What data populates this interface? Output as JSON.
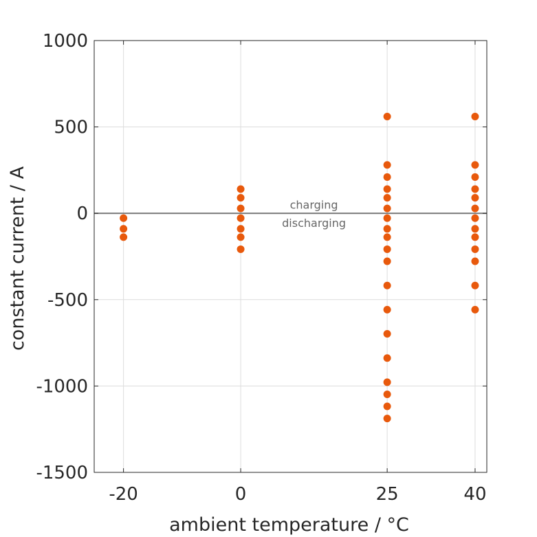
{
  "chart_data": {
    "type": "scatter",
    "xlabel": "ambient temperature / °C",
    "ylabel": "constant current / A",
    "xlim": [
      -25,
      42
    ],
    "ylim": [
      -1500,
      1000
    ],
    "xticks": [
      -20,
      0,
      25,
      40
    ],
    "xtick_labels": [
      "-20",
      "0",
      "25",
      "40"
    ],
    "yticks": [
      -1500,
      -1000,
      -500,
      0,
      500,
      1000
    ],
    "ytick_labels": [
      "-1500",
      "-1000",
      "-500",
      "0",
      "500",
      "1000"
    ],
    "grid": true,
    "reference_line": 0,
    "annotations": [
      {
        "text": "charging",
        "x": 12.5,
        "y": 50
      },
      {
        "text": "discharging",
        "x": 12.5,
        "y": -55
      }
    ],
    "series": [
      {
        "color": "#e8590c",
        "points": [
          {
            "x": -20,
            "y": -28
          },
          {
            "x": -20,
            "y": -90
          },
          {
            "x": -20,
            "y": -138
          },
          {
            "x": 0,
            "y": 140
          },
          {
            "x": 0,
            "y": 90
          },
          {
            "x": 0,
            "y": 28
          },
          {
            "x": 0,
            "y": -28
          },
          {
            "x": 0,
            "y": -90
          },
          {
            "x": 0,
            "y": -138
          },
          {
            "x": 0,
            "y": -208
          },
          {
            "x": 25,
            "y": 560
          },
          {
            "x": 25,
            "y": 280
          },
          {
            "x": 25,
            "y": 210
          },
          {
            "x": 25,
            "y": 140
          },
          {
            "x": 25,
            "y": 90
          },
          {
            "x": 25,
            "y": 28
          },
          {
            "x": 25,
            "y": -28
          },
          {
            "x": 25,
            "y": -90
          },
          {
            "x": 25,
            "y": -138
          },
          {
            "x": 25,
            "y": -208
          },
          {
            "x": 25,
            "y": -278
          },
          {
            "x": 25,
            "y": -418
          },
          {
            "x": 25,
            "y": -558
          },
          {
            "x": 25,
            "y": -698
          },
          {
            "x": 25,
            "y": -838
          },
          {
            "x": 25,
            "y": -978
          },
          {
            "x": 25,
            "y": -1048
          },
          {
            "x": 25,
            "y": -1118
          },
          {
            "x": 25,
            "y": -1188
          },
          {
            "x": 40,
            "y": 560
          },
          {
            "x": 40,
            "y": 280
          },
          {
            "x": 40,
            "y": 210
          },
          {
            "x": 40,
            "y": 140
          },
          {
            "x": 40,
            "y": 90
          },
          {
            "x": 40,
            "y": 28
          },
          {
            "x": 40,
            "y": -28
          },
          {
            "x": 40,
            "y": -90
          },
          {
            "x": 40,
            "y": -138
          },
          {
            "x": 40,
            "y": -208
          },
          {
            "x": 40,
            "y": -278
          },
          {
            "x": 40,
            "y": -418
          },
          {
            "x": 40,
            "y": -558
          }
        ]
      }
    ]
  }
}
